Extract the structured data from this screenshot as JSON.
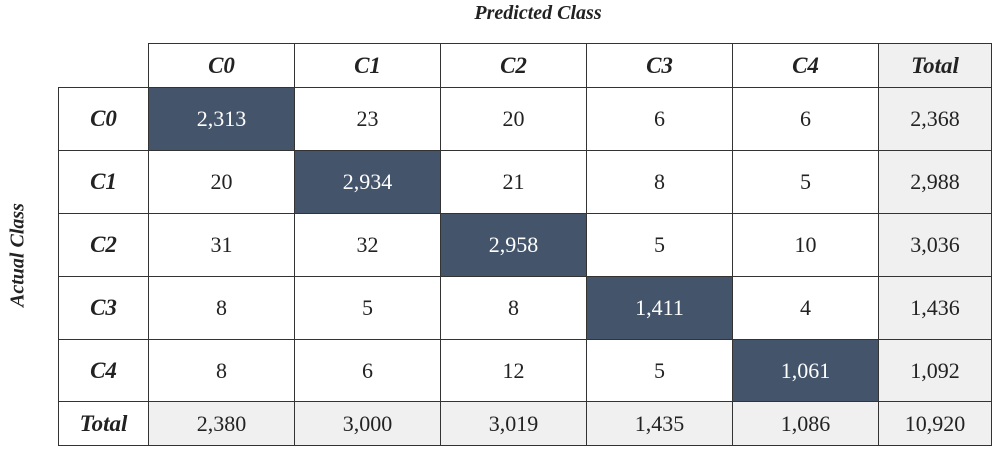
{
  "title": "Predicted Class",
  "y_label": "Actual Class",
  "table": {
    "header": [
      "C0",
      "C1",
      "C2",
      "C3",
      "C4",
      "Total"
    ],
    "rows": [
      [
        "C0",
        "2,313",
        "23",
        "20",
        "6",
        "6",
        "2,368"
      ],
      [
        "C1",
        "20",
        "2,934",
        "21",
        "8",
        "5",
        "2,988"
      ],
      [
        "C2",
        "31",
        "32",
        "2,958",
        "5",
        "10",
        "3,036"
      ],
      [
        "C3",
        "8",
        "5",
        "8",
        "1,411",
        "4",
        "1,436"
      ],
      [
        "C4",
        "8",
        "6",
        "12",
        "5",
        "1,061",
        "1,092"
      ],
      [
        "Total",
        "2,380",
        "3,000",
        "3,019",
        "1,435",
        "1,086",
        "10,920"
      ]
    ]
  }
}
